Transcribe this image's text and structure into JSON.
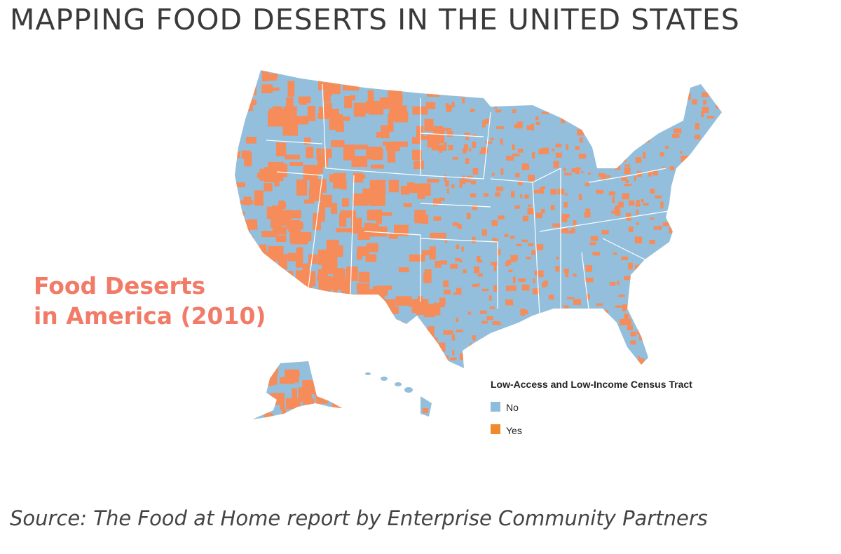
{
  "header": {
    "title": "MAPPING FOOD DESERTS IN THE UNITED STATES"
  },
  "map": {
    "label_lines": [
      "Food Deserts",
      "in America (2010)"
    ],
    "legend": {
      "title": "Low-Access and Low-Income Census Tract",
      "items": [
        {
          "label": "No",
          "color": "#8fbcdc"
        },
        {
          "label": "Yes",
          "color": "#f08a2a"
        }
      ]
    }
  },
  "footer": {
    "source": "Source: The Food at Home report by Enterprise Community Partners"
  }
}
